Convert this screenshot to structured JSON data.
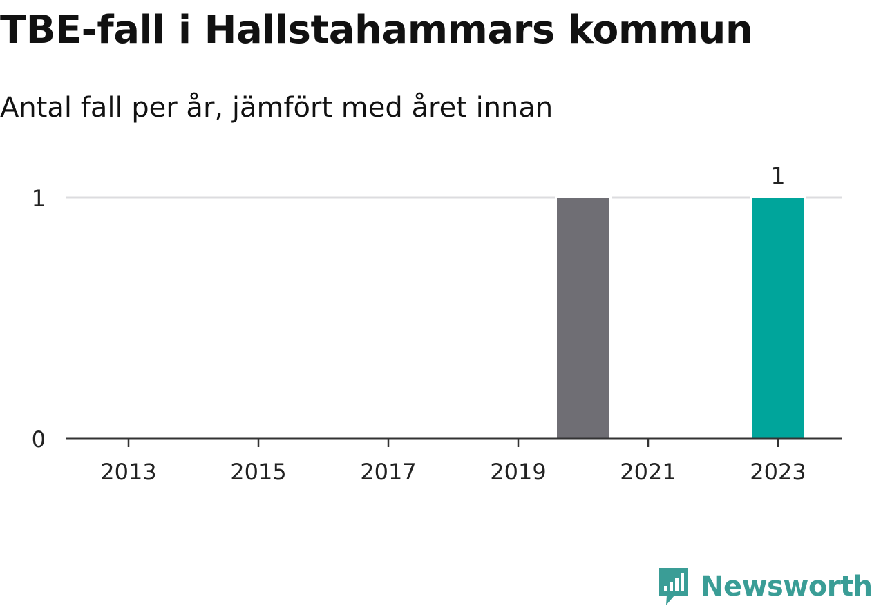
{
  "header": {
    "title": "TBE-fall i Hallstahammars kommun",
    "subtitle": "Antal fall per år, jämfört med året innan"
  },
  "chart_data": {
    "type": "bar",
    "title": "TBE-fall i Hallstahammars kommun",
    "subtitle": "Antal fall per år, jämfört med året innan",
    "categories": [
      "2013",
      "2014",
      "2015",
      "2016",
      "2017",
      "2018",
      "2019",
      "2020",
      "2021",
      "2022",
      "2023"
    ],
    "values": [
      0,
      0,
      0,
      0,
      0,
      0,
      0,
      1,
      0,
      0,
      1
    ],
    "x_tick_labels": [
      "2013",
      "2015",
      "2017",
      "2019",
      "2021",
      "2023"
    ],
    "y_tick_labels": [
      "0",
      "1"
    ],
    "ylim": [
      0,
      1
    ],
    "xlabel": "",
    "ylabel": "",
    "grid": true,
    "highlight_category": "2023",
    "data_labels": [
      {
        "category": "2023",
        "text": "1"
      }
    ],
    "colors": {
      "previous": "#6f6e74",
      "highlight": "#00a59b",
      "grid": "#dcdcdf",
      "axis": "#333333"
    }
  },
  "branding": {
    "logo_text": "Newsworthy",
    "logo_icon": "newsworthy-chart-bubble-icon",
    "logo_color": "#3a9d96"
  }
}
